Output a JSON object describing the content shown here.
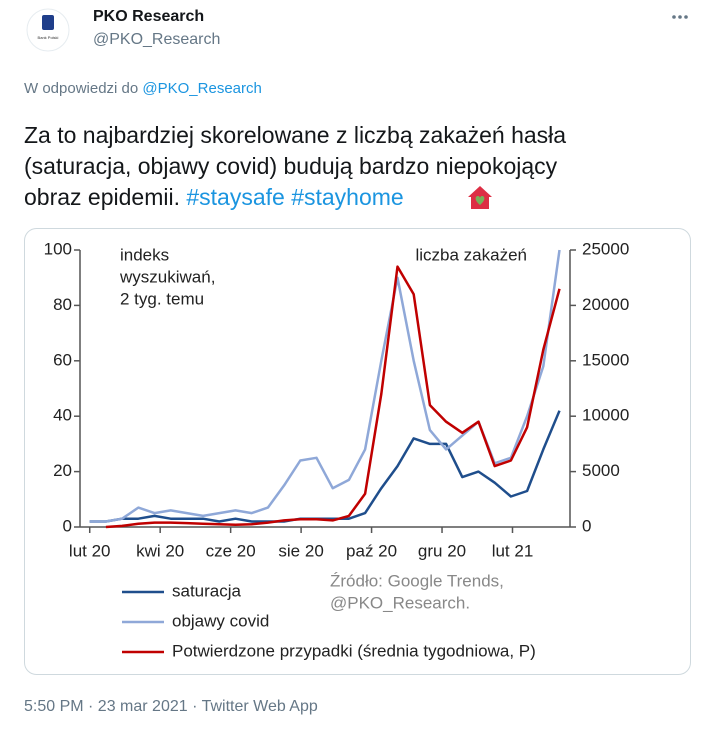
{
  "tweet": {
    "name": "PKO Research",
    "handle": "@PKO_Research",
    "avatar_label": "Bank Polski",
    "reply_prefix": "W odpowiedzi do",
    "reply_to": "@PKO_Research",
    "text_lines": [
      "Za to najbardziej skorelowane z liczbą zakażeń hasła",
      "(saturacja, objawy covid) budują bardzo niepokojący",
      "obraz epidemii."
    ],
    "hashtags": [
      "#staysafe",
      "#stayhome"
    ],
    "footer": "5:50 PM · 23 mar 2021 · Twitter Web App"
  },
  "chart_data": {
    "type": "line",
    "annotations": [
      [
        "indeks",
        "wyszukiwań,",
        "2 tyg. temu"
      ],
      [
        "liczba zakażeń"
      ],
      [
        "Źródło: Google Trends,",
        "@PKO_Research."
      ]
    ],
    "x": [
      0,
      2,
      4,
      6,
      8,
      10,
      12,
      14,
      16,
      18,
      20,
      22,
      24,
      26,
      28,
      30,
      32,
      34,
      36,
      38,
      40,
      42,
      44,
      46,
      48,
      50,
      52,
      54,
      56,
      58
    ],
    "xlim": [
      -1.2,
      59.3
    ],
    "xticks": [
      {
        "value": 0,
        "label": "lut 20"
      },
      {
        "value": 8.7,
        "label": "kwi 20"
      },
      {
        "value": 17.4,
        "label": "cze 20"
      },
      {
        "value": 26.1,
        "label": "sie 20"
      },
      {
        "value": 34.8,
        "label": "paź 20"
      },
      {
        "value": 43.5,
        "label": "gru 20"
      },
      {
        "value": 52.2,
        "label": "lut 21"
      }
    ],
    "ylim": [
      0,
      100
    ],
    "yticks": [
      0,
      20,
      40,
      60,
      80,
      100
    ],
    "y2lim": [
      0,
      25000
    ],
    "y2ticks": [
      0,
      5000,
      10000,
      15000,
      20000,
      25000
    ],
    "series": [
      {
        "name": "saturacja",
        "color": "#1f4e8c",
        "values": [
          2,
          2,
          3,
          3,
          4,
          3,
          3,
          3,
          2,
          3,
          2,
          2,
          2,
          3,
          3,
          3,
          3,
          5,
          14,
          22,
          32,
          30,
          30,
          18,
          20,
          16,
          11,
          13,
          28,
          42
        ]
      },
      {
        "name": "objawy covid",
        "color": "#8fa8d8",
        "values": [
          2,
          2,
          3,
          7,
          5,
          6,
          5,
          4,
          5,
          6,
          5,
          7,
          15,
          24,
          25,
          14,
          17,
          28,
          60,
          90,
          60,
          35,
          28,
          33,
          38,
          23,
          25,
          40,
          58,
          100
        ]
      },
      {
        "name": "Potwierdzone przypadki (średnia tygodniowa, P)",
        "color": "#c00000",
        "axis": "y2",
        "values": [
          null,
          0,
          100,
          300,
          400,
          400,
          350,
          300,
          250,
          200,
          250,
          400,
          600,
          700,
          700,
          600,
          1000,
          3000,
          12000,
          23500,
          21000,
          11000,
          9500,
          8500,
          9500,
          5500,
          6000,
          9000,
          16000,
          21500
        ]
      }
    ]
  }
}
